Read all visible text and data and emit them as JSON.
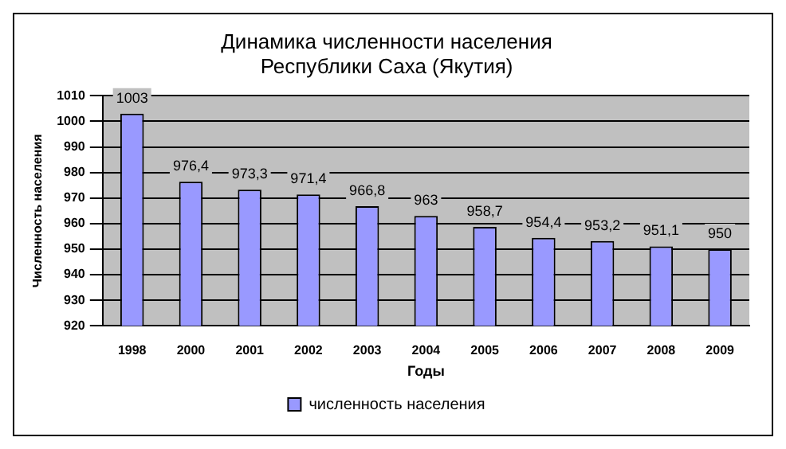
{
  "chart_data": {
    "type": "bar",
    "title": "Динамика численности населения\nРеспублики Саха (Якутия)",
    "xlabel": "Годы",
    "ylabel": "Численность населения",
    "categories": [
      "1998",
      "2000",
      "2001",
      "2002",
      "2003",
      "2004",
      "2005",
      "2006",
      "2007",
      "2008",
      "2009"
    ],
    "series": [
      {
        "name": "численность населения",
        "color": "#9999ff",
        "values": [
          1003,
          976.4,
          973.3,
          971.4,
          966.8,
          963,
          958.7,
          954.4,
          953.2,
          951.1,
          950
        ],
        "value_labels": [
          "1003",
          "976,4",
          "973,3",
          "971,4",
          "966,8",
          "963",
          "958,7",
          "954,4",
          "953,2",
          "951,1",
          "950"
        ]
      }
    ],
    "ylim": [
      920,
      1010
    ],
    "yticks": [
      920,
      930,
      940,
      950,
      960,
      970,
      980,
      990,
      1000,
      1010
    ],
    "grid": "y",
    "legend": "bottom"
  }
}
